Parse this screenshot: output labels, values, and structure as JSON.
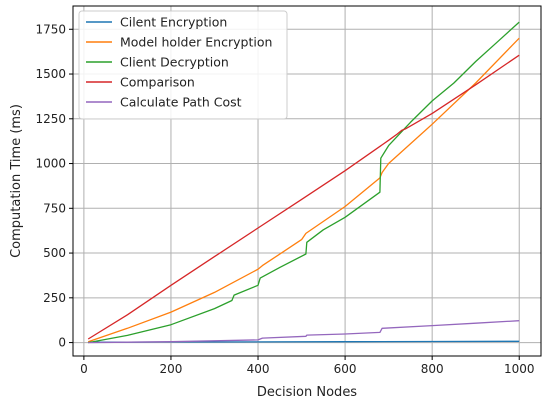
{
  "chart_data": {
    "type": "line",
    "title": "",
    "xlabel": "Decision Nodes",
    "ylabel": "Computation Time (ms)",
    "xlim": [
      -25,
      1050
    ],
    "ylim": [
      -75,
      1880
    ],
    "xticks": [
      0,
      200,
      400,
      600,
      800,
      1000
    ],
    "yticks": [
      0,
      250,
      500,
      750,
      1000,
      1250,
      1500,
      1750
    ],
    "grid": true,
    "legend_position": "top-left",
    "series": [
      {
        "name": "Cilent Encryption",
        "color": "#1f77b4",
        "x": [
          10,
          200,
          400,
          600,
          800,
          1000
        ],
        "y": [
          2,
          3,
          4,
          5,
          6,
          7
        ]
      },
      {
        "name": "Model holder Encryption",
        "color": "#ff7f0e",
        "x": [
          10,
          100,
          200,
          300,
          400,
          410,
          500,
          510,
          600,
          680,
          685,
          700,
          800,
          900,
          1000
        ],
        "y": [
          5,
          80,
          170,
          280,
          410,
          430,
          575,
          610,
          760,
          920,
          950,
          1000,
          1220,
          1450,
          1700
        ]
      },
      {
        "name": "Client Decryption",
        "color": "#2ca02c",
        "x": [
          10,
          100,
          200,
          300,
          340,
          345,
          400,
          405,
          450,
          510,
          512,
          550,
          600,
          680,
          682,
          700,
          750,
          800,
          850,
          900,
          950,
          1000
        ],
        "y": [
          0,
          40,
          100,
          190,
          235,
          265,
          320,
          360,
          420,
          495,
          560,
          630,
          700,
          840,
          1030,
          1100,
          1230,
          1350,
          1450,
          1570,
          1680,
          1790
        ]
      },
      {
        "name": "Comparison",
        "color": "#d62728",
        "x": [
          10,
          100,
          200,
          300,
          400,
          500,
          600,
          700,
          720,
          730,
          740,
          800,
          900,
          1000
        ],
        "y": [
          20,
          155,
          320,
          480,
          640,
          800,
          960,
          1130,
          1165,
          1185,
          1195,
          1280,
          1440,
          1605
        ]
      },
      {
        "name": "Calculate Path Cost",
        "color": "#9467bd",
        "x": [
          10,
          200,
          300,
          400,
          410,
          510,
          512,
          600,
          680,
          685,
          800,
          900,
          1000
        ],
        "y": [
          0,
          5,
          10,
          15,
          25,
          35,
          42,
          48,
          57,
          80,
          95,
          108,
          122
        ]
      }
    ]
  }
}
